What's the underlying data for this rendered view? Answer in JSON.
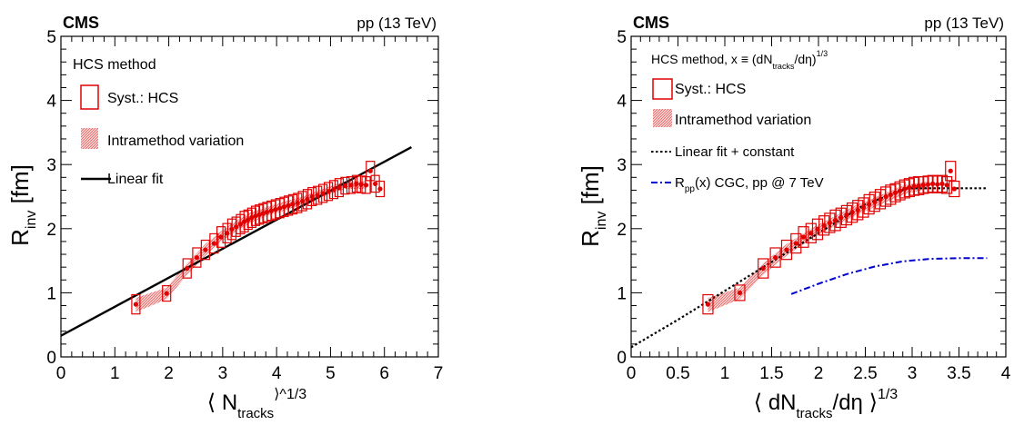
{
  "chart_data": [
    {
      "type": "scatter",
      "experiment_label": "CMS",
      "energy_label": "pp (13 TeV)",
      "xlabel": "⟨ N",
      "xlabel_sub": "tracks",
      "xlabel_sup": "⟩^1/3",
      "ylabel": "R",
      "ylabel_sub": "inv",
      "ylabel_unit": "[fm]",
      "xlim": [
        0,
        7
      ],
      "ylim": [
        0,
        5
      ],
      "xticks": [
        "0",
        "1",
        "2",
        "3",
        "4",
        "5",
        "6",
        "7"
      ],
      "yticks": [
        "0",
        "1",
        "2",
        "3",
        "4",
        "5"
      ],
      "legend": {
        "title": "HCS method",
        "entries": [
          "Syst.: HCS",
          "Intramethod variation",
          "Linear fit"
        ]
      },
      "colors": {
        "data": "#e00000",
        "band": "#f4a6a6",
        "fit": "#000000"
      },
      "series": [
        {
          "name": "Syst.: HCS",
          "x": [
            1.39,
            1.96,
            2.34,
            2.52,
            2.68,
            2.84,
            2.97,
            3.08,
            3.17,
            3.25,
            3.33,
            3.4,
            3.47,
            3.54,
            3.61,
            3.68,
            3.75,
            3.82,
            3.9,
            3.98,
            4.06,
            4.14,
            4.22,
            4.3,
            4.39,
            4.48,
            4.57,
            4.66,
            4.76,
            4.86,
            4.96,
            5.06,
            5.16,
            5.27,
            5.38,
            5.48,
            5.57,
            5.66,
            5.74,
            5.83,
            5.92
          ],
          "y": [
            0.82,
            0.99,
            1.38,
            1.55,
            1.67,
            1.77,
            1.87,
            1.93,
            1.99,
            2.03,
            2.07,
            2.11,
            2.14,
            2.17,
            2.2,
            2.22,
            2.24,
            2.26,
            2.28,
            2.3,
            2.32,
            2.34,
            2.36,
            2.38,
            2.4,
            2.43,
            2.46,
            2.5,
            2.52,
            2.55,
            2.58,
            2.61,
            2.64,
            2.67,
            2.68,
            2.7,
            2.69,
            2.68,
            2.9,
            2.7,
            2.62
          ],
          "syst_err": [
            0.15,
            0.12,
            0.15,
            0.15,
            0.15,
            0.15,
            0.16,
            0.15,
            0.16,
            0.15,
            0.15,
            0.16,
            0.15,
            0.15,
            0.15,
            0.15,
            0.15,
            0.15,
            0.15,
            0.15,
            0.15,
            0.15,
            0.15,
            0.15,
            0.15,
            0.15,
            0.15,
            0.14,
            0.14,
            0.14,
            0.14,
            0.14,
            0.14,
            0.13,
            0.13,
            0.13,
            0.13,
            0.13,
            0.15,
            0.13,
            0.12
          ]
        }
      ],
      "band": {
        "name": "Intramethod variation",
        "x": [
          1.39,
          1.96,
          2.34,
          2.68,
          2.97,
          3.25,
          3.54,
          3.82,
          4.14,
          4.48,
          4.86,
          5.27,
          5.66
        ],
        "low": [
          0.7,
          0.9,
          1.28,
          1.58,
          1.8,
          1.96,
          2.1,
          2.2,
          2.28,
          2.38,
          2.5,
          2.62,
          2.62
        ],
        "high": [
          0.92,
          1.08,
          1.46,
          1.76,
          1.96,
          2.12,
          2.26,
          2.34,
          2.42,
          2.5,
          2.62,
          2.74,
          2.74
        ]
      },
      "fit": {
        "name": "Linear fit",
        "x": [
          0.0,
          6.5
        ],
        "y": [
          0.33,
          3.27
        ]
      }
    },
    {
      "type": "scatter",
      "experiment_label": "CMS",
      "energy_label": "pp (13 TeV)",
      "xlabel": "⟨ dN",
      "xlabel_sub": "tracks",
      "xlabel_tail": "/dη ⟩",
      "xlabel_sup": "1/3",
      "ylabel": "R",
      "ylabel_sub": "inv",
      "ylabel_unit": "[fm]",
      "xlim": [
        0,
        4
      ],
      "ylim": [
        0,
        5
      ],
      "xticks": [
        "0",
        "0.5",
        "1",
        "1.5",
        "2",
        "2.5",
        "3",
        "3.5",
        "4"
      ],
      "yticks": [
        "0",
        "1",
        "2",
        "3",
        "4",
        "5"
      ],
      "legend": {
        "title": "HCS method, x ≡ (dN",
        "title_sub": "tracks",
        "title_tail": "/dη)",
        "title_sup": "1/3",
        "entries": [
          "Syst.: HCS",
          "Intramethod variation",
          "Linear fit + constant",
          "R",
          "pp",
          "(x) CGC, pp @ 7 TeV"
        ]
      },
      "colors": {
        "data": "#e00000",
        "band": "#f4a6a6",
        "fit": "#000000",
        "cgc": "#0000cc"
      },
      "series": [
        {
          "name": "Syst.: HCS",
          "x": [
            0.82,
            1.16,
            1.41,
            1.54,
            1.66,
            1.76,
            1.84,
            1.92,
            1.99,
            2.06,
            2.12,
            2.18,
            2.24,
            2.3,
            2.36,
            2.42,
            2.48,
            2.54,
            2.6,
            2.66,
            2.72,
            2.77,
            2.82,
            2.87,
            2.92,
            2.97,
            3.02,
            3.07,
            3.12,
            3.17,
            3.22,
            3.27,
            3.32,
            3.37,
            3.41,
            3.45
          ],
          "y": [
            0.82,
            1.0,
            1.38,
            1.55,
            1.67,
            1.77,
            1.87,
            1.93,
            1.99,
            2.05,
            2.09,
            2.13,
            2.17,
            2.21,
            2.25,
            2.29,
            2.33,
            2.38,
            2.42,
            2.46,
            2.5,
            2.53,
            2.56,
            2.59,
            2.62,
            2.64,
            2.66,
            2.67,
            2.68,
            2.69,
            2.7,
            2.69,
            2.7,
            2.68,
            2.9,
            2.62
          ],
          "syst_err": [
            0.15,
            0.12,
            0.15,
            0.15,
            0.15,
            0.15,
            0.16,
            0.15,
            0.16,
            0.15,
            0.15,
            0.16,
            0.15,
            0.15,
            0.15,
            0.15,
            0.15,
            0.15,
            0.15,
            0.15,
            0.15,
            0.15,
            0.14,
            0.14,
            0.14,
            0.14,
            0.14,
            0.14,
            0.13,
            0.13,
            0.13,
            0.13,
            0.13,
            0.13,
            0.15,
            0.12
          ]
        }
      ],
      "band": {
        "name": "Intramethod variation",
        "x": [
          0.82,
          1.16,
          1.41,
          1.66,
          1.92,
          2.18,
          2.42,
          2.66,
          2.92,
          3.17
        ],
        "low": [
          0.7,
          0.9,
          1.28,
          1.58,
          1.84,
          2.04,
          2.22,
          2.38,
          2.54,
          2.62
        ],
        "high": [
          0.92,
          1.08,
          1.46,
          1.76,
          2.0,
          2.2,
          2.38,
          2.52,
          2.68,
          2.74
        ]
      },
      "fit": {
        "name": "Linear fit + constant",
        "x": [
          0.0,
          0.5,
          1.0,
          1.5,
          2.0,
          2.5,
          2.95,
          3.2,
          3.5,
          3.8
        ],
        "y": [
          0.15,
          0.58,
          1.03,
          1.48,
          1.93,
          2.38,
          2.63,
          2.63,
          2.63,
          2.63
        ]
      },
      "cgc": {
        "name": "R_pp(x) CGC, pp @ 7 TeV",
        "x": [
          1.71,
          2.0,
          2.3,
          2.6,
          2.9,
          3.2,
          3.5,
          3.8
        ],
        "y": [
          0.98,
          1.14,
          1.29,
          1.41,
          1.49,
          1.53,
          1.54,
          1.54
        ]
      }
    }
  ]
}
